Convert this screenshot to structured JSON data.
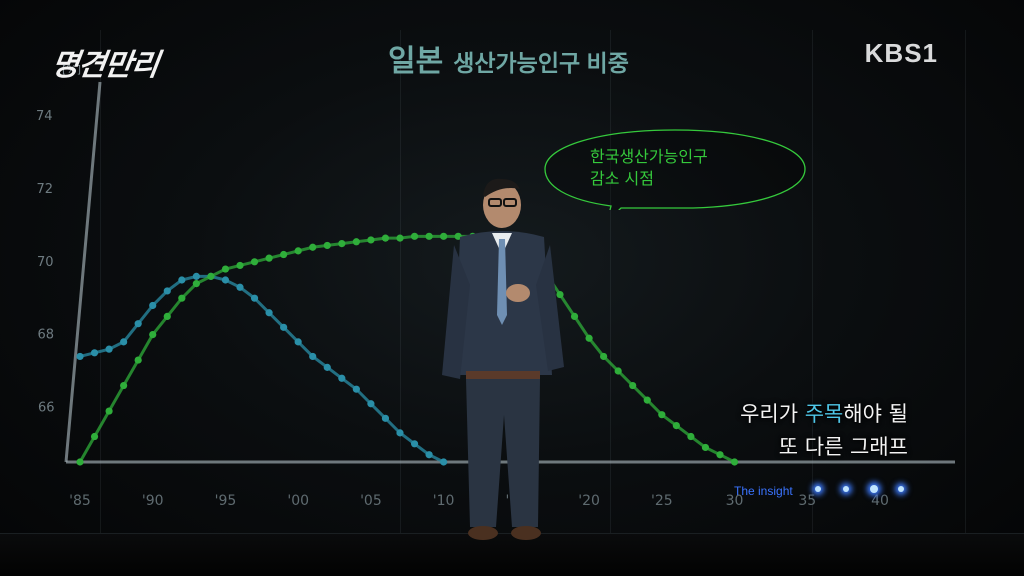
{
  "broadcast": {
    "program_logo": "명견만리",
    "channel_logo": "KBS1"
  },
  "chart_title": {
    "country": "일본",
    "subject": "생산가능인구 비중"
  },
  "chart_data": {
    "type": "line",
    "title": "일본 생산가능인구 비중",
    "ylabel": "[%]",
    "xlabel": "",
    "ylim": [
      64.5,
      74.5
    ],
    "yticks": [
      74,
      72,
      70,
      68,
      66
    ],
    "xlim": [
      1985,
      2040
    ],
    "xticks": [
      "'85",
      "'90",
      "'95",
      "'00",
      "'05",
      "'10",
      "'15",
      "'20",
      "'25",
      "30",
      "35",
      "40"
    ],
    "xtick_years": [
      1985,
      1990,
      1995,
      2000,
      2005,
      2010,
      2015,
      2020,
      2025,
      2030,
      2035,
      2040
    ],
    "grid": false,
    "legend": "none",
    "series": [
      {
        "style": "dotted",
        "color": "#2a8fa8",
        "x": [
          1985,
          1986,
          1987,
          1988,
          1989,
          1990,
          1991,
          1992,
          1993,
          1994,
          1995,
          1996,
          1997,
          1998,
          1999,
          2000,
          2001,
          2002,
          2003,
          2004,
          2005,
          2006,
          2007,
          2008,
          2009,
          2010
        ],
        "values": [
          67.4,
          67.5,
          67.6,
          67.8,
          68.3,
          68.8,
          69.2,
          69.5,
          69.6,
          69.6,
          69.5,
          69.3,
          69.0,
          68.6,
          68.2,
          67.8,
          67.4,
          67.1,
          66.8,
          66.5,
          66.1,
          65.7,
          65.3,
          65.0,
          64.7,
          64.5
        ]
      },
      {
        "style": "dotted",
        "color": "#2fae3a",
        "x": [
          1985,
          1986,
          1987,
          1988,
          1989,
          1990,
          1991,
          1992,
          1993,
          1994,
          1995,
          1996,
          1997,
          1998,
          1999,
          2000,
          2001,
          2002,
          2003,
          2004,
          2005,
          2006,
          2007,
          2008,
          2009,
          2010,
          2011,
          2012,
          2013,
          2014,
          2015,
          2016,
          2017,
          2018,
          2019,
          2020,
          2021,
          2022,
          2023,
          2024,
          2025,
          2026,
          2027,
          2028,
          2029,
          2030
        ],
        "values": [
          64.5,
          65.2,
          65.9,
          66.6,
          67.3,
          68.0,
          68.5,
          69.0,
          69.4,
          69.6,
          69.8,
          69.9,
          70.0,
          70.1,
          70.2,
          70.3,
          70.4,
          70.45,
          70.5,
          70.55,
          70.6,
          70.65,
          70.65,
          70.7,
          70.7,
          70.7,
          70.7,
          70.7,
          70.7,
          70.7,
          70.7,
          70.3,
          69.7,
          69.1,
          68.5,
          67.9,
          67.4,
          67.0,
          66.6,
          66.2,
          65.8,
          65.5,
          65.2,
          64.9,
          64.7,
          64.5
        ]
      }
    ]
  },
  "speech_bubble": {
    "line1": "한국생산가능인구",
    "line2": "감소 시점",
    "color": "#35c93c"
  },
  "caption": {
    "line1_pre": "우리가 ",
    "line1_highlight": "주목",
    "line1_post": "해야 될",
    "line2": "또 다른 그래프"
  },
  "insight_badge": {
    "label": "The insight"
  },
  "colors": {
    "background": "#0b0e10",
    "title": "#6fa7a4",
    "axis": "#9aa7ad",
    "series_blue": "#2a8fa8",
    "series_green": "#2fae3a",
    "caption_highlight": "#4fc7e8"
  }
}
